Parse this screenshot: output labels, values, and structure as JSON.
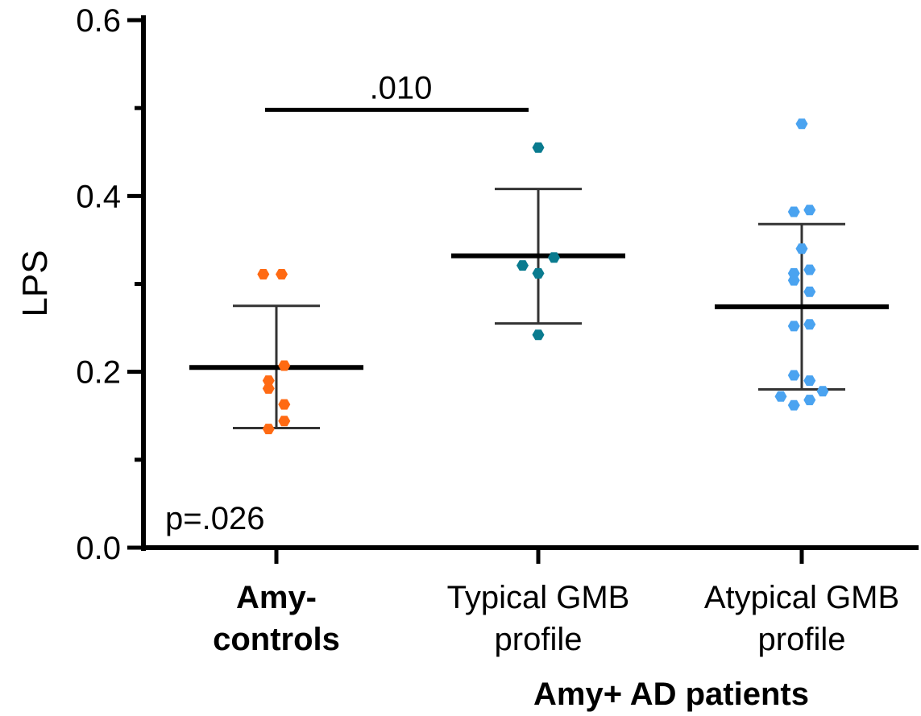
{
  "chart_data": {
    "type": "scatter",
    "ylabel": "LPS",
    "ylim": [
      0.0,
      0.6
    ],
    "yticks_major": [
      "0.0",
      "0.2",
      "0.4",
      "0.6"
    ],
    "yticks_major_values": [
      0.0,
      0.2,
      0.4,
      0.6
    ],
    "yticks_minor_values": [
      0.1,
      0.3,
      0.5
    ],
    "grid": false,
    "group_label": "Amy+ AD patients",
    "categories": [
      {
        "line1": "Amy-",
        "line2": "controls",
        "bold": true
      },
      {
        "line1": "Typical GMB",
        "line2": "profile",
        "bold": false
      },
      {
        "line1": "Atypical GMB",
        "line2": "profile",
        "bold": false
      }
    ],
    "series": [
      {
        "color": "#ff6a13",
        "mean": 0.205,
        "sd_low": 0.136,
        "sd_high": 0.275,
        "points": [
          {
            "dx": -0.05,
            "y": 0.311
          },
          {
            "dx": 0.02,
            "y": 0.311
          },
          {
            "dx": 0.03,
            "y": 0.207
          },
          {
            "dx": -0.03,
            "y": 0.19
          },
          {
            "dx": -0.03,
            "y": 0.181
          },
          {
            "dx": 0.03,
            "y": 0.163
          },
          {
            "dx": 0.03,
            "y": 0.144
          },
          {
            "dx": -0.03,
            "y": 0.135
          }
        ]
      },
      {
        "color": "#0a7b8f",
        "mean": 0.332,
        "sd_low": 0.255,
        "sd_high": 0.408,
        "points": [
          {
            "dx": 0.0,
            "y": 0.455
          },
          {
            "dx": -0.06,
            "y": 0.321
          },
          {
            "dx": 0.06,
            "y": 0.33
          },
          {
            "dx": 0.0,
            "y": 0.312
          },
          {
            "dx": 0.0,
            "y": 0.242
          }
        ]
      },
      {
        "color": "#4aa3f0",
        "mean": 0.274,
        "sd_low": 0.18,
        "sd_high": 0.368,
        "points": [
          {
            "dx": 0.0,
            "y": 0.482
          },
          {
            "dx": -0.03,
            "y": 0.382
          },
          {
            "dx": 0.03,
            "y": 0.384
          },
          {
            "dx": 0.0,
            "y": 0.34
          },
          {
            "dx": -0.03,
            "y": 0.312
          },
          {
            "dx": 0.03,
            "y": 0.316
          },
          {
            "dx": -0.03,
            "y": 0.304
          },
          {
            "dx": 0.03,
            "y": 0.291
          },
          {
            "dx": -0.03,
            "y": 0.252
          },
          {
            "dx": 0.03,
            "y": 0.254
          },
          {
            "dx": -0.03,
            "y": 0.196
          },
          {
            "dx": 0.03,
            "y": 0.19
          },
          {
            "dx": -0.08,
            "y": 0.172
          },
          {
            "dx": 0.08,
            "y": 0.178
          },
          {
            "dx": 0.03,
            "y": 0.168
          },
          {
            "dx": -0.03,
            "y": 0.162
          }
        ]
      }
    ],
    "annotations": {
      "bracket_label": ".010",
      "bracket_from": 0,
      "bracket_to": 1,
      "bracket_y": 0.498,
      "overall_p": "p=.026"
    }
  }
}
